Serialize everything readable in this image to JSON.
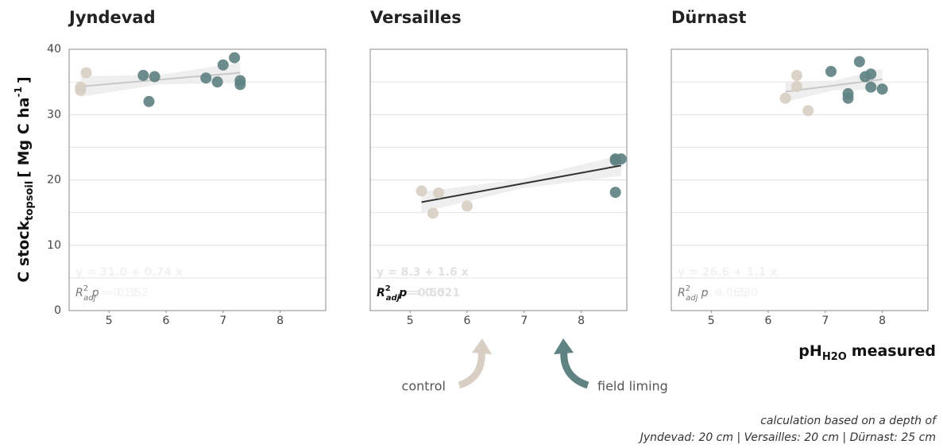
{
  "chart_data": [
    {
      "type": "scatter",
      "title": "Jyndevad",
      "xlim": [
        4.3,
        8.8
      ],
      "xticks": [
        5,
        6,
        7,
        8
      ],
      "ylim": [
        0,
        40
      ],
      "yticks": [
        0,
        10,
        20,
        30,
        40
      ],
      "show_yticks": true,
      "grid": true,
      "minor_grid": true,
      "series": [
        {
          "color": "#d8cec3",
          "x": [
            4.5,
            4.5,
            4.6
          ],
          "values": [
            34.2,
            33.7,
            36.4
          ]
        },
        {
          "color": "#5f8283",
          "x": [
            5.6,
            5.7,
            5.8,
            6.7,
            6.9,
            7.0,
            7.2,
            7.3,
            7.3
          ],
          "values": [
            36.0,
            32.0,
            35.8,
            35.6,
            35.0,
            37.6,
            38.7,
            35.2,
            34.6
          ]
        }
      ],
      "trend": {
        "color": "#c8c8c8",
        "x": [
          4.5,
          7.3
        ],
        "y": [
          34.3,
          36.4
        ]
      },
      "equation": "y = 31.0 + 0.74 x",
      "stats": {
        "r2_label": "R",
        "r2_sup": "2",
        "r2_sub": "adj",
        "r2_value": "= 0.11",
        "p_label": "p",
        "p_value": "= 0.352"
      },
      "stats_style": "light"
    },
    {
      "type": "scatter",
      "title": "Versailles",
      "xlim": [
        4.3,
        8.8
      ],
      "xticks": [
        5,
        6,
        7,
        8
      ],
      "ylim": [
        0,
        40
      ],
      "yticks": [
        0,
        10,
        20,
        30,
        40
      ],
      "show_yticks": false,
      "grid": true,
      "minor_grid": true,
      "series": [
        {
          "color": "#d8cec3",
          "x": [
            5.2,
            5.4,
            5.5,
            6.0
          ],
          "values": [
            18.3,
            14.9,
            18.0,
            16.0
          ]
        },
        {
          "color": "#5f8283",
          "x": [
            8.6,
            8.6,
            8.7,
            8.6
          ],
          "values": [
            23.2,
            18.1,
            23.2,
            23.0
          ]
        }
      ],
      "trend": {
        "color": "#333333",
        "x": [
          5.2,
          8.7
        ],
        "y": [
          16.6,
          22.2
        ]
      },
      "equation": "y = 8.3 + 1.6 x",
      "stats": {
        "r2_label": "R",
        "r2_sup": "2",
        "r2_sub": "adj",
        "r2_value": "= 0.55",
        "p_label": "p",
        "p_value": "= 0.021"
      },
      "stats_style": "bold"
    },
    {
      "type": "scatter",
      "title": "Dürnast",
      "xlim": [
        4.3,
        8.8
      ],
      "xticks": [
        5,
        6,
        7,
        8
      ],
      "ylim": [
        0,
        40
      ],
      "yticks": [
        0,
        10,
        20,
        30,
        40
      ],
      "show_yticks": false,
      "grid": true,
      "minor_grid": true,
      "series": [
        {
          "color": "#d8cec3",
          "x": [
            6.3,
            6.5,
            6.5,
            6.7
          ],
          "values": [
            32.5,
            36.0,
            34.3,
            30.6
          ]
        },
        {
          "color": "#5f8283",
          "x": [
            7.1,
            7.4,
            7.4,
            7.6,
            7.7,
            7.8,
            7.8,
            8.0
          ],
          "values": [
            36.6,
            33.2,
            32.5,
            38.1,
            35.8,
            36.2,
            34.2,
            33.9
          ]
        }
      ],
      "trend": {
        "color": "#c8c8c8",
        "x": [
          6.3,
          8.0
        ],
        "y": [
          33.5,
          35.4
        ]
      },
      "equation": "y = 26.6 + 1.1 x",
      "stats": {
        "r2_label": "R",
        "r2_sup": "2",
        "r2_sub": "adj",
        "r2_value": "= 0.065",
        "p_label": "p",
        "p_value": "= 0.330"
      },
      "stats_style": "light"
    }
  ],
  "ylabel": {
    "main": "C stock",
    "sub": "topsoil",
    "rest": "[ Mg C ha",
    "sup": "-1",
    "end": "]"
  },
  "xlabel": {
    "main": "pH",
    "sub": "H2O",
    "rest": "measured"
  },
  "legend": [
    {
      "name": "control",
      "color": "#d8cec3"
    },
    {
      "name": "field liming",
      "color": "#5f8283"
    }
  ],
  "note": [
    "calculation based on a depth of",
    "Jyndevad: 20 cm | Versailles: 20 cm | Dürnast: 25 cm"
  ]
}
